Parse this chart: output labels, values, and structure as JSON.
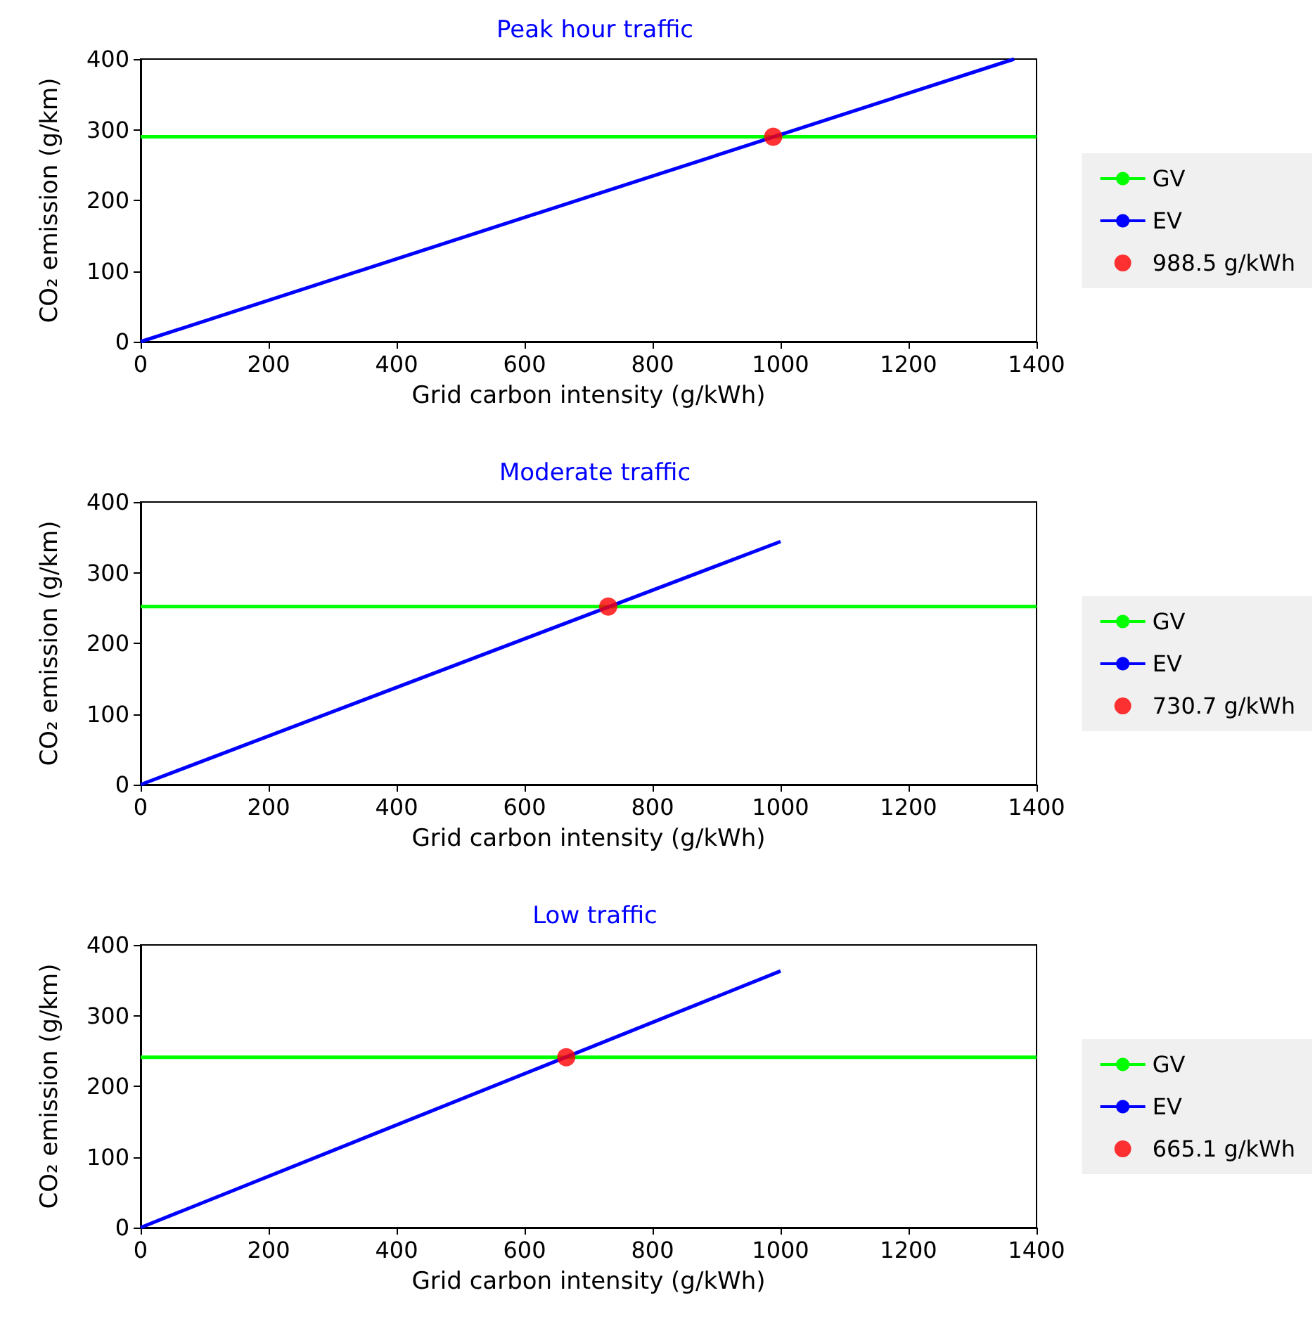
{
  "chart_data": [
    {
      "type": "line",
      "title": "Peak hour traffic",
      "xlabel": "Grid carbon intensity (g/kWh)",
      "ylabel": "CO₂ emission (g/km)",
      "xlim": [
        0,
        1400
      ],
      "ylim": [
        0,
        400
      ],
      "xticks": [
        0,
        200,
        400,
        600,
        800,
        1000,
        1200,
        1400
      ],
      "yticks": [
        0,
        100,
        200,
        300,
        400
      ],
      "grid": false,
      "legend": "right",
      "series": [
        {
          "name": "GV",
          "color": "#00ff00",
          "x": [
            0,
            1400
          ],
          "values": [
            290,
            290
          ],
          "marker": "none"
        },
        {
          "name": "EV",
          "color": "#0000ff",
          "x": [
            0,
            1365
          ],
          "values": [
            0,
            400
          ],
          "marker": "none"
        },
        {
          "name": "988.5 g/kWh",
          "type": "scatter",
          "color": "#ff0000",
          "x": [
            988.5
          ],
          "values": [
            290
          ],
          "marker": "circle"
        }
      ]
    },
    {
      "type": "line",
      "title": "Moderate traffic",
      "xlabel": "Grid carbon intensity (g/kWh)",
      "ylabel": "CO₂ emission (g/km)",
      "xlim": [
        0,
        1400
      ],
      "ylim": [
        0,
        400
      ],
      "xticks": [
        0,
        200,
        400,
        600,
        800,
        1000,
        1200,
        1400
      ],
      "yticks": [
        0,
        100,
        200,
        300,
        400
      ],
      "grid": false,
      "legend": "right",
      "series": [
        {
          "name": "GV",
          "color": "#00ff00",
          "x": [
            0,
            1400
          ],
          "values": [
            252,
            252
          ],
          "marker": "none"
        },
        {
          "name": "EV",
          "color": "#0000ff",
          "x": [
            0,
            1000
          ],
          "values": [
            0,
            344
          ],
          "marker": "none"
        },
        {
          "name": "730.7 g/kWh",
          "type": "scatter",
          "color": "#ff0000",
          "x": [
            730.7
          ],
          "values": [
            252
          ],
          "marker": "circle"
        }
      ]
    },
    {
      "type": "line",
      "title": "Low traffic",
      "xlabel": "Grid carbon intensity (g/kWh)",
      "ylabel": "CO₂ emission (g/km)",
      "xlim": [
        0,
        1400
      ],
      "ylim": [
        0,
        400
      ],
      "xticks": [
        0,
        200,
        400,
        600,
        800,
        1000,
        1200,
        1400
      ],
      "yticks": [
        0,
        100,
        200,
        300,
        400
      ],
      "grid": false,
      "legend": "right",
      "series": [
        {
          "name": "GV",
          "color": "#00ff00",
          "x": [
            0,
            1400
          ],
          "values": [
            241,
            241
          ],
          "marker": "none"
        },
        {
          "name": "EV",
          "color": "#0000ff",
          "x": [
            0,
            1000
          ],
          "values": [
            0,
            363
          ],
          "marker": "none"
        },
        {
          "name": "665.1 g/kWh",
          "type": "scatter",
          "color": "#ff0000",
          "x": [
            665.1
          ],
          "values": [
            241
          ],
          "marker": "circle"
        }
      ]
    }
  ]
}
